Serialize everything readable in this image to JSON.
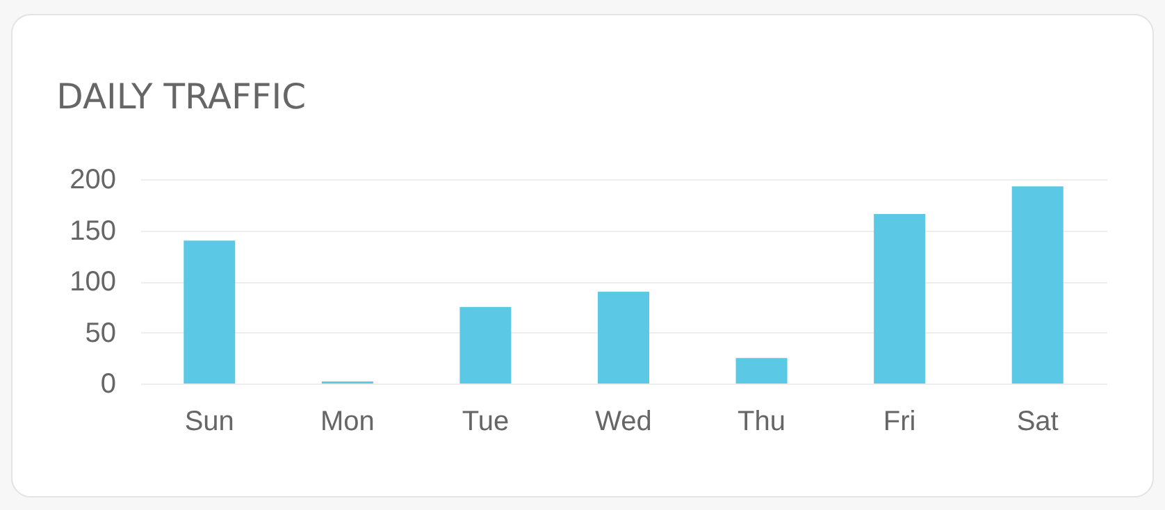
{
  "chart_data": {
    "type": "bar",
    "title": "DAILY TRAFFIC",
    "categories": [
      "Sun",
      "Mon",
      "Tue",
      "Wed",
      "Thu",
      "Fri",
      "Sat"
    ],
    "values": [
      140,
      2,
      75,
      90,
      25,
      166,
      193
    ],
    "color": "#5bc9e5",
    "ylim": [
      0,
      200
    ],
    "yticks": [
      0,
      50,
      100,
      150,
      200
    ],
    "grid": "y"
  }
}
